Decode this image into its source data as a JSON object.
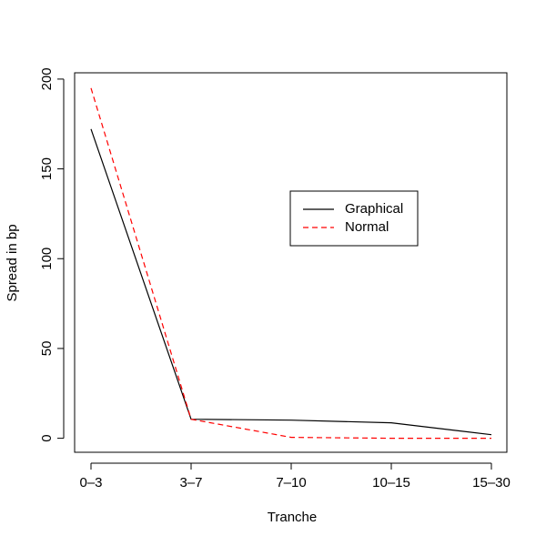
{
  "chart_data": {
    "type": "line",
    "x_label": "Tranche",
    "y_label": "Spread in bp",
    "categories": [
      "0–3",
      "3–7",
      "7–10",
      "10–15",
      "15–30"
    ],
    "series": [
      {
        "name": "Graphical",
        "color": "#000000",
        "dash": "solid",
        "values": [
          172.2,
          10.6,
          10.1,
          8.6,
          2.0
        ]
      },
      {
        "name": "Normal",
        "color": "#ff0000",
        "dash": "dashed",
        "values": [
          195,
          10.6,
          0.5,
          0,
          0
        ]
      }
    ],
    "ylim": [
      -7.8,
      203.5
    ],
    "yticks": [
      0,
      50,
      100,
      150,
      200
    ],
    "legend": "top-right"
  }
}
